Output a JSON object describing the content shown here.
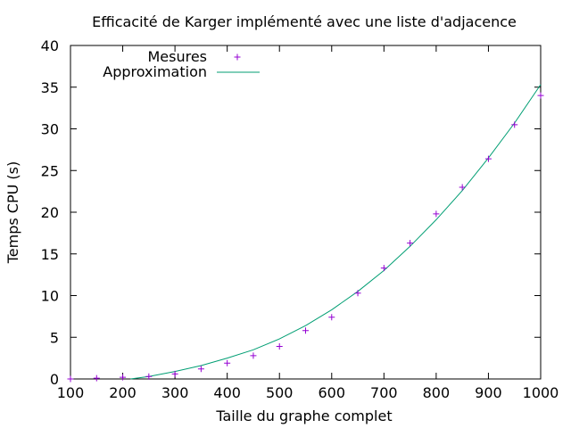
{
  "chart_data": {
    "type": "scatter",
    "title": "Efficacité de Karger implémenté avec une liste d'adjacence",
    "xlabel": "Taille du graphe complet",
    "ylabel": "Temps CPU (s)",
    "xlim": [
      100,
      1000
    ],
    "ylim": [
      0,
      40
    ],
    "xticks": [
      "100",
      "200",
      "300",
      "400",
      "500",
      "600",
      "700",
      "800",
      "900",
      "1000"
    ],
    "yticks": [
      "0",
      "5",
      "10",
      "15",
      "20",
      "25",
      "30",
      "35",
      "40"
    ],
    "grid": false,
    "legend_position": "top-left",
    "series": [
      {
        "name": "Mesures",
        "kind": "points",
        "marker": "plus",
        "color": "#9400d3",
        "x": [
          100,
          150,
          200,
          250,
          300,
          350,
          400,
          450,
          500,
          550,
          600,
          650,
          700,
          750,
          800,
          850,
          900,
          950,
          1000
        ],
        "y": [
          0.0,
          0.1,
          0.2,
          0.3,
          0.6,
          1.2,
          1.9,
          2.8,
          3.9,
          5.8,
          7.4,
          10.3,
          13.3,
          16.3,
          19.8,
          23.0,
          26.4,
          30.5,
          34.0
        ]
      },
      {
        "name": "Approximation",
        "kind": "line",
        "color": "#009e73",
        "x": [
          215,
          250,
          300,
          350,
          400,
          450,
          500,
          550,
          600,
          650,
          700,
          750,
          800,
          850,
          900,
          950,
          1000
        ],
        "y": [
          0.0,
          0.3,
          0.9,
          1.6,
          2.5,
          3.5,
          4.8,
          6.4,
          8.3,
          10.5,
          13.0,
          15.9,
          19.1,
          22.6,
          26.5,
          30.7,
          35.3
        ]
      }
    ]
  }
}
